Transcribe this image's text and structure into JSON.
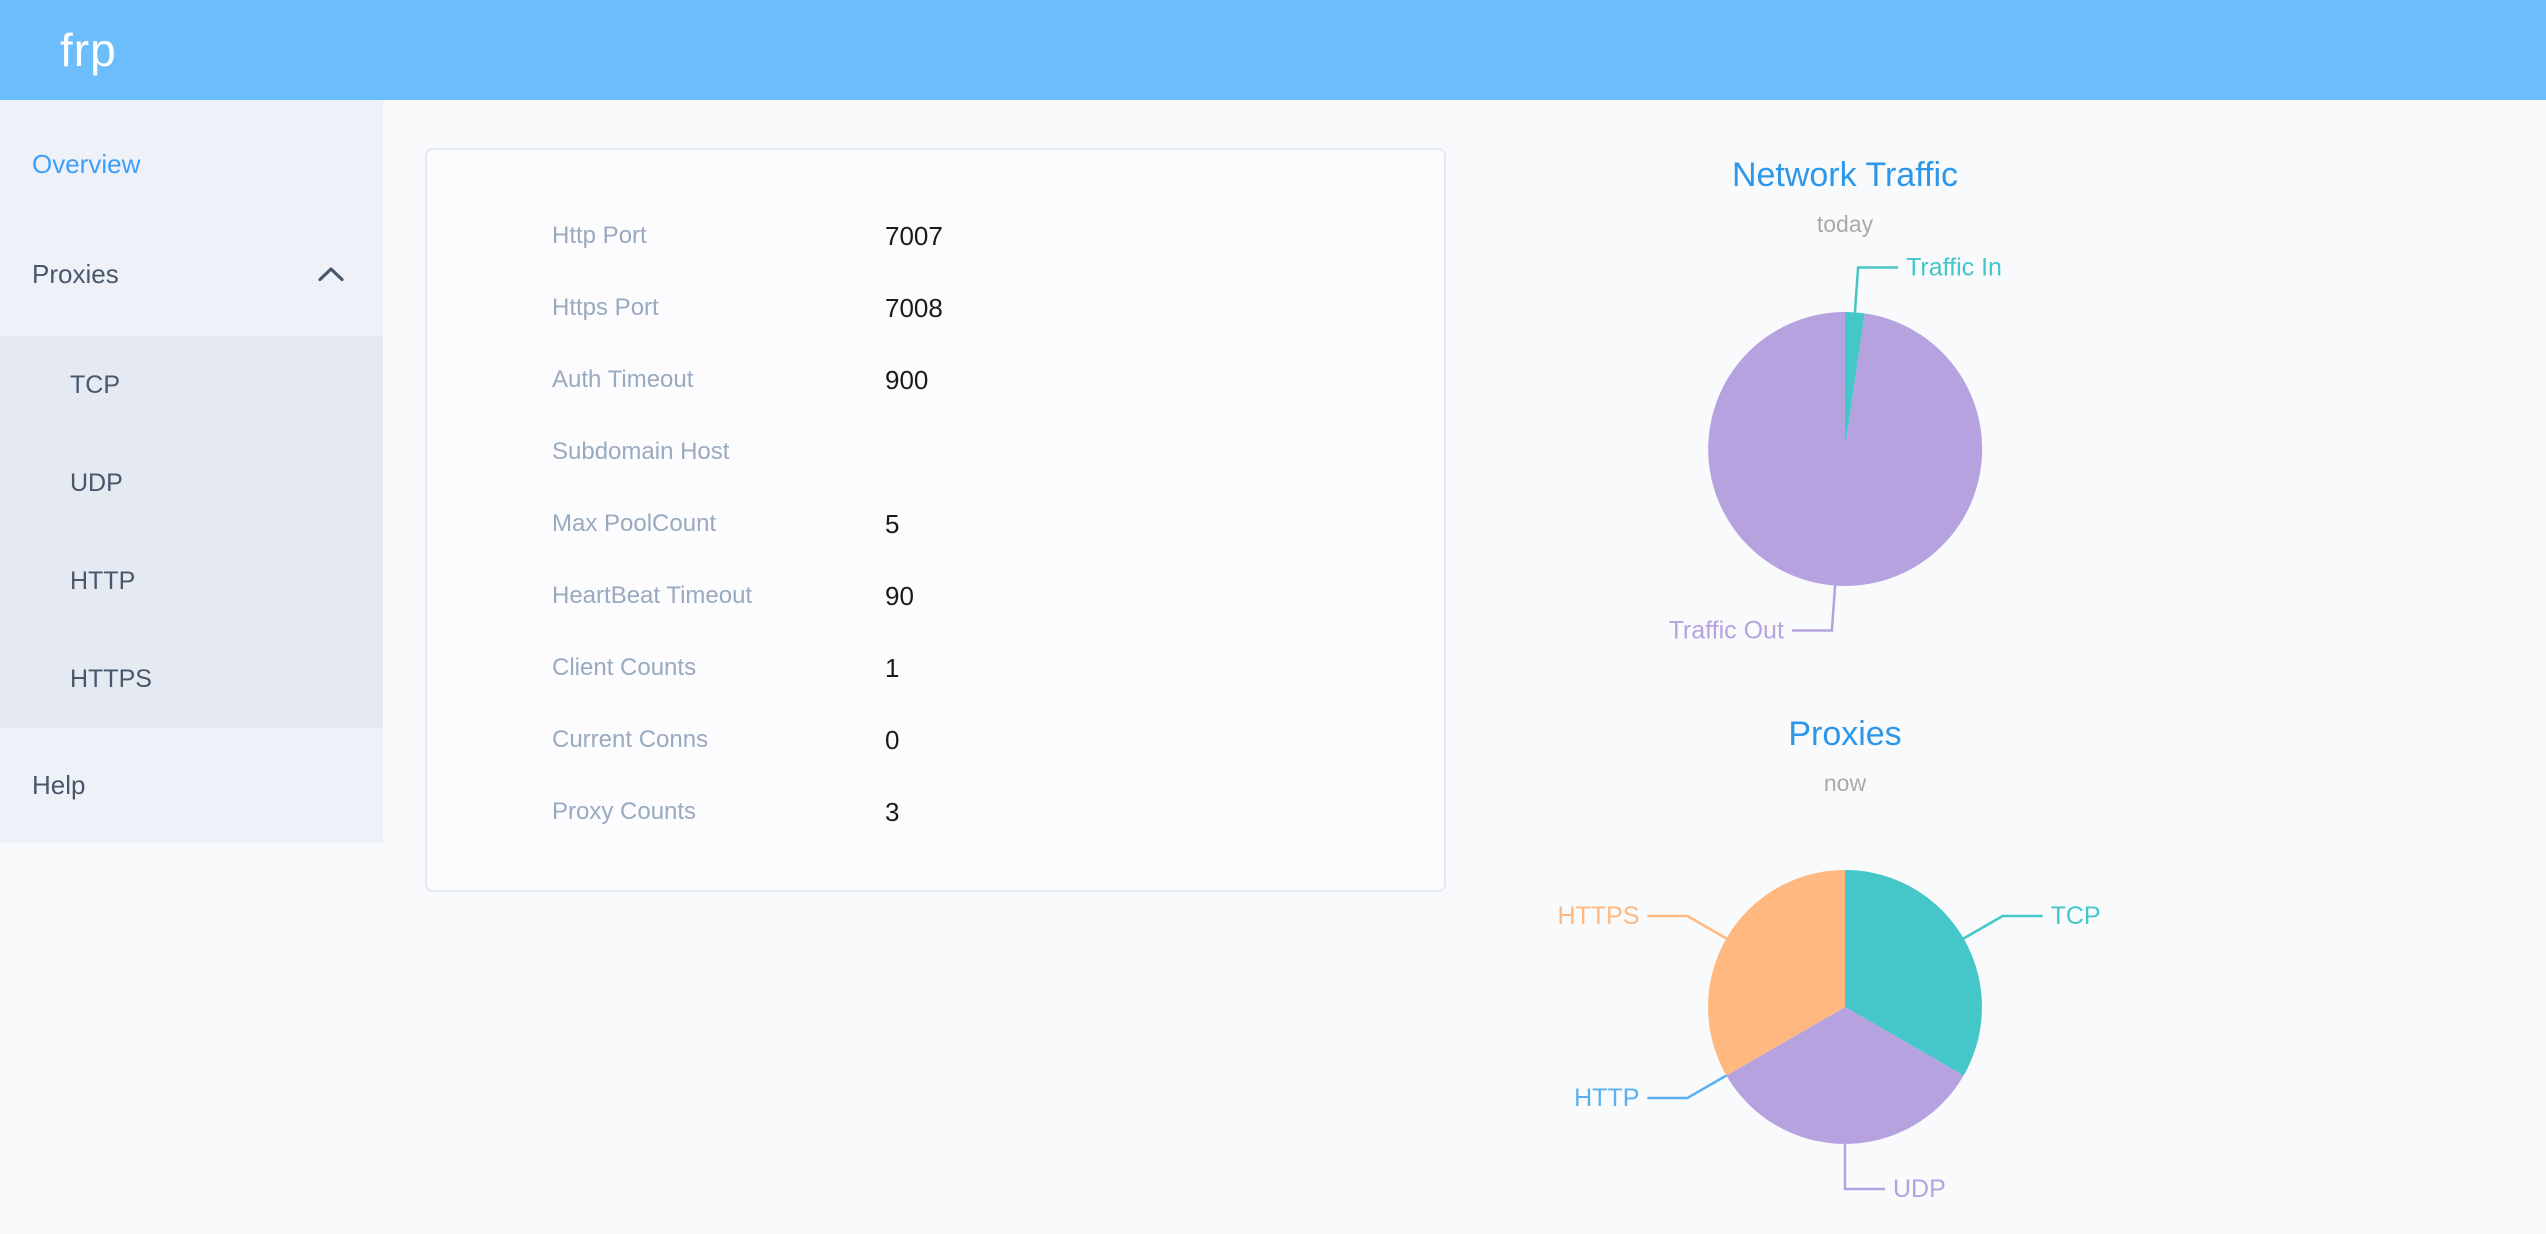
{
  "header": {
    "logo": "frp",
    "background_color": "#6cbdfb"
  },
  "sidebar": {
    "items": [
      {
        "label": "Overview",
        "active": true
      },
      {
        "label": "Proxies",
        "active": false,
        "expanded": true,
        "children": [
          "TCP",
          "UDP",
          "HTTP",
          "HTTPS"
        ]
      },
      {
        "label": "Help",
        "active": false
      }
    ]
  },
  "server_config": {
    "fields": [
      {
        "label": "Http Port",
        "value": "7007"
      },
      {
        "label": "Https Port",
        "value": "7008"
      },
      {
        "label": "Auth Timeout",
        "value": "900"
      },
      {
        "label": "Subdomain Host",
        "value": ""
      },
      {
        "label": "Max PoolCount",
        "value": "5"
      },
      {
        "label": "HeartBeat Timeout",
        "value": "90"
      },
      {
        "label": "Client Counts",
        "value": "1"
      },
      {
        "label": "Current Conns",
        "value": "0"
      },
      {
        "label": "Proxy Counts",
        "value": "3"
      }
    ]
  },
  "chart_data": [
    {
      "type": "pie",
      "title": "Network Traffic",
      "subtitle": "today",
      "legend_position": "none",
      "labels": "outside with leader lines",
      "value_basis": "percent of pie, estimated from slice angles",
      "series": [
        {
          "name": "Traffic In",
          "value": 2.3,
          "color": "#45c6c8"
        },
        {
          "name": "Traffic Out",
          "value": 97.7,
          "color": "#b6a2de"
        }
      ]
    },
    {
      "type": "pie",
      "title": "Proxies",
      "subtitle": "now",
      "legend_position": "none",
      "labels": "outside with leader lines",
      "value_basis": "proxy count per type (three equal slices, HTTP = 0)",
      "series": [
        {
          "name": "TCP",
          "value": 1,
          "color": "#45c6c8"
        },
        {
          "name": "UDP",
          "value": 1,
          "color": "#b6a2de"
        },
        {
          "name": "HTTP",
          "value": 0,
          "color": "#5ab1ef"
        },
        {
          "name": "HTTPS",
          "value": 1,
          "color": "#ffb980"
        }
      ]
    }
  ],
  "colors": {
    "header_bg": "#6cbdfb",
    "sidebar_bg": "#eef2f8",
    "submenu_bg": "#e5e9f2",
    "menu_text": "#48576a",
    "menu_active": "#3d9ff7",
    "config_label": "#99a9bf",
    "config_value": "#1a1a1a",
    "chart_title": "#2e97e8",
    "chart_subtitle": "#a9a9a9"
  }
}
